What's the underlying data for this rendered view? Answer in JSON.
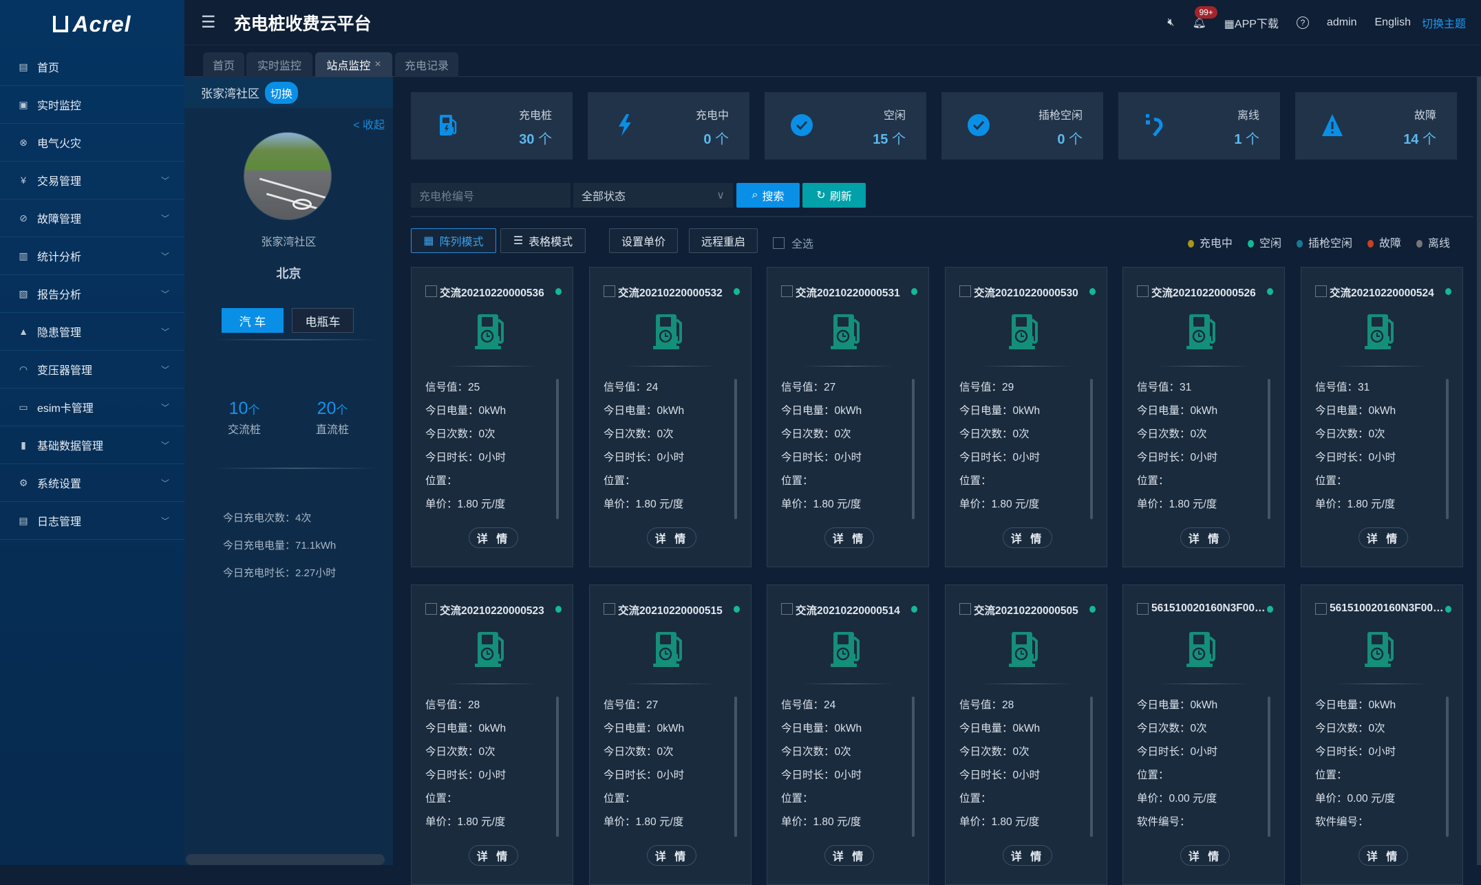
{
  "brand": "Acrel",
  "app_title": "充电桩收费云平台",
  "header": {
    "mute_icon": "volume-mute-icon",
    "notification_count": "99+",
    "app_download": "APP下载",
    "user": "admin",
    "language": "English",
    "theme": "切换主题"
  },
  "sidebar": {
    "items": [
      {
        "label": "首页",
        "icon": "home-icon",
        "expandable": false
      },
      {
        "label": "实时监控",
        "icon": "monitor-icon",
        "expandable": false
      },
      {
        "label": "电气火灾",
        "icon": "fire-icon",
        "expandable": false
      },
      {
        "label": "交易管理",
        "icon": "yuan-icon",
        "expandable": true
      },
      {
        "label": "故障管理",
        "icon": "wrench-icon",
        "expandable": true
      },
      {
        "label": "统计分析",
        "icon": "bar-chart-icon",
        "expandable": true
      },
      {
        "label": "报告分析",
        "icon": "report-icon",
        "expandable": true
      },
      {
        "label": "隐患管理",
        "icon": "warning-icon",
        "expandable": true
      },
      {
        "label": "变压器管理",
        "icon": "gauge-icon",
        "expandable": true
      },
      {
        "label": "esim卡管理",
        "icon": "sim-card-icon",
        "expandable": true
      },
      {
        "label": "基础数据管理",
        "icon": "charger-icon",
        "expandable": true
      },
      {
        "label": "系统设置",
        "icon": "gears-icon",
        "expandable": true
      },
      {
        "label": "日志管理",
        "icon": "notebook-icon",
        "expandable": true
      }
    ]
  },
  "tabs": [
    {
      "label": "首页"
    },
    {
      "label": "实时监控"
    },
    {
      "label": "站点监控",
      "active": true,
      "close": "×"
    },
    {
      "label": "充电记录"
    }
  ],
  "site_panel": {
    "name": "张家湾社区",
    "switch_label": "切换",
    "collapse_label": "< 收起",
    "site_name": "张家湾社区",
    "city": "北京",
    "vehicle_types": [
      {
        "label": "汽 车",
        "active": true
      },
      {
        "label": "电瓶车",
        "active": false
      }
    ],
    "counts": [
      {
        "value": "10",
        "unit": "个",
        "label": "交流桩"
      },
      {
        "value": "20",
        "unit": "个",
        "label": "直流桩"
      }
    ],
    "today": [
      "今日充电次数：4次",
      "今日充电电量：71.1kWh",
      "今日充电时长：2.27小时"
    ]
  },
  "stats": [
    {
      "label": "充电桩",
      "value": "30",
      "unit": "个",
      "icon": "charging-pile-icon"
    },
    {
      "label": "充电中",
      "value": "0",
      "unit": "个",
      "icon": "lightning-icon"
    },
    {
      "label": "空闲",
      "value": "15",
      "unit": "个",
      "icon": "check-circle-icon"
    },
    {
      "label": "插枪空闲",
      "value": "0",
      "unit": "个",
      "icon": "check-circle-icon"
    },
    {
      "label": "离线",
      "value": "1",
      "unit": "个",
      "icon": "unplugged-icon"
    },
    {
      "label": "故障",
      "value": "14",
      "unit": "个",
      "icon": "alert-triangle-icon"
    }
  ],
  "filters": {
    "gun_placeholder": "充电枪编号",
    "status_value": "全部状态",
    "search": "搜索",
    "refresh": "刷新"
  },
  "modes": {
    "array": "阵列模式",
    "table": "表格模式",
    "set_price": "设置单价",
    "remote_restart": "远程重启",
    "select_all": "全选"
  },
  "legend": [
    {
      "label": "充电中",
      "color": "#a8961a"
    },
    {
      "label": "空闲",
      "color": "#14b894"
    },
    {
      "label": "插枪空闲",
      "color": "#167a94"
    },
    {
      "label": "故障",
      "color": "#c5431f"
    },
    {
      "label": "离线",
      "color": "#777777"
    }
  ],
  "detail_label": "详 情",
  "chargers": [
    {
      "name": "交流20210220000536",
      "status": "空闲",
      "fields": [
        "信号值：25",
        "今日电量：0kWh",
        "今日次数：0次",
        "今日时长：0小时",
        "位置：",
        "单价：1.80 元/度"
      ]
    },
    {
      "name": "交流20210220000532",
      "status": "空闲",
      "fields": [
        "信号值：24",
        "今日电量：0kWh",
        "今日次数：0次",
        "今日时长：0小时",
        "位置：",
        "单价：1.80 元/度"
      ]
    },
    {
      "name": "交流20210220000531",
      "status": "空闲",
      "fields": [
        "信号值：27",
        "今日电量：0kWh",
        "今日次数：0次",
        "今日时长：0小时",
        "位置：",
        "单价：1.80 元/度"
      ]
    },
    {
      "name": "交流20210220000530",
      "status": "空闲",
      "fields": [
        "信号值：29",
        "今日电量：0kWh",
        "今日次数：0次",
        "今日时长：0小时",
        "位置：",
        "单价：1.80 元/度"
      ]
    },
    {
      "name": "交流20210220000526",
      "status": "空闲",
      "fields": [
        "信号值：31",
        "今日电量：0kWh",
        "今日次数：0次",
        "今日时长：0小时",
        "位置：",
        "单价：1.80 元/度"
      ]
    },
    {
      "name": "交流20210220000524",
      "status": "空闲",
      "fields": [
        "信号值：31",
        "今日电量：0kWh",
        "今日次数：0次",
        "今日时长：0小时",
        "位置：",
        "单价：1.80 元/度"
      ]
    },
    {
      "name": "交流20210220000523",
      "status": "空闲",
      "fields": [
        "信号值：28",
        "今日电量：0kWh",
        "今日次数：0次",
        "今日时长：0小时",
        "位置：",
        "单价：1.80 元/度"
      ]
    },
    {
      "name": "交流20210220000515",
      "status": "空闲",
      "fields": [
        "信号值：27",
        "今日电量：0kWh",
        "今日次数：0次",
        "今日时长：0小时",
        "位置：",
        "单价：1.80 元/度"
      ]
    },
    {
      "name": "交流20210220000514",
      "status": "空闲",
      "fields": [
        "信号值：24",
        "今日电量：0kWh",
        "今日次数：0次",
        "今日时长：0小时",
        "位置：",
        "单价：1.80 元/度"
      ]
    },
    {
      "name": "交流20210220000505",
      "status": "空闲",
      "fields": [
        "信号值：28",
        "今日电量：0kWh",
        "今日次数：0次",
        "今日时长：0小时",
        "位置：",
        "单价：1.80 元/度"
      ]
    },
    {
      "name": "561510020160N3F000...",
      "status": "空闲",
      "fields": [
        "今日电量：0kWh",
        "今日次数：0次",
        "今日时长：0小时",
        "位置：",
        "单价：0.00 元/度",
        "软件编号："
      ]
    },
    {
      "name": "561510020160N3F000...",
      "status": "空闲",
      "fields": [
        "今日电量：0kWh",
        "今日次数：0次",
        "今日时长：0小时",
        "位置：",
        "单价：0.00 元/度",
        "软件编号："
      ]
    }
  ]
}
